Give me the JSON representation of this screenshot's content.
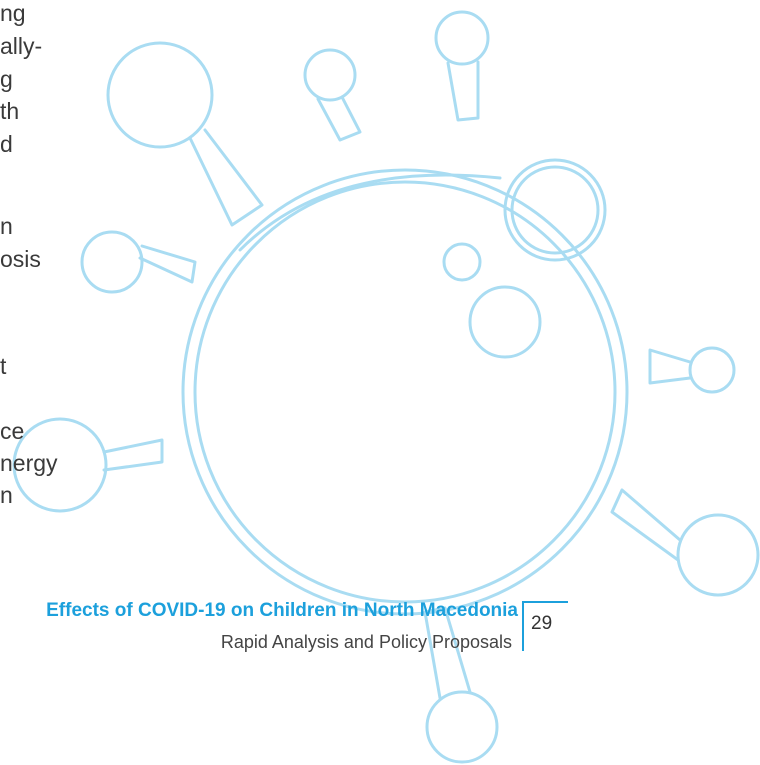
{
  "body_lines": [
    "ng",
    "ally-",
    "g",
    "th",
    "d",
    "n",
    "osis",
    "t",
    "ce",
    "nergy",
    "n"
  ],
  "footer": {
    "title": "Effects of COVID-19 on Children in North Macedonia",
    "subtitle": "Rapid Analysis and Policy Proposals",
    "page_number": "29"
  }
}
